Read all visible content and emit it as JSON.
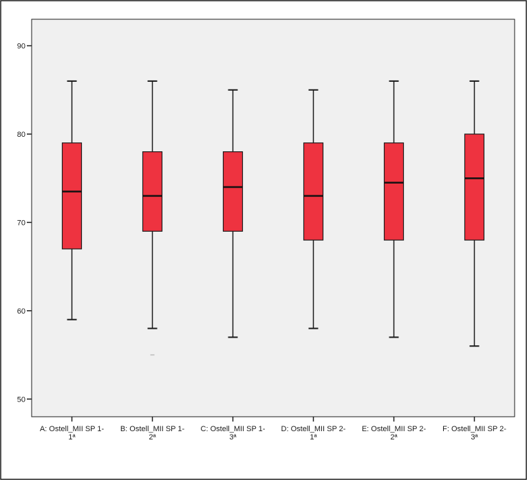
{
  "chart_data": {
    "type": "box",
    "title": "",
    "xlabel": "",
    "ylabel": "",
    "ylim": [
      48,
      93
    ],
    "yticks": [
      50,
      60,
      70,
      80,
      90
    ],
    "grid": false,
    "colors": {
      "box_fill": "#ee3340",
      "box_stroke": "#1a1a1a",
      "plot_background": "#f0f0f0",
      "outlier": "#c8c8c8"
    },
    "categories": [
      {
        "line1": "A: Ostell_MII SP 1-",
        "line2": "1ª"
      },
      {
        "line1": "B: Ostell_MII SP 1-",
        "line2": "2ª"
      },
      {
        "line1": "C: Ostell_MII SP 1-",
        "line2": "3ª"
      },
      {
        "line1": "D: Ostell_MII SP 2-",
        "line2": "1ª"
      },
      {
        "line1": "E: Ostell_MII SP 2-",
        "line2": "2ª"
      },
      {
        "line1": "F: Ostell_MII SP 2-",
        "line2": "3ª"
      }
    ],
    "boxes": [
      {
        "min": 59,
        "q1": 67,
        "median": 73.5,
        "q3": 79,
        "max": 86,
        "outliers": []
      },
      {
        "min": 58,
        "q1": 69,
        "median": 73,
        "q3": 78,
        "max": 86,
        "outliers": [
          55
        ]
      },
      {
        "min": 57,
        "q1": 69,
        "median": 74,
        "q3": 78,
        "max": 85,
        "outliers": []
      },
      {
        "min": 58,
        "q1": 68,
        "median": 73,
        "q3": 79,
        "max": 85,
        "outliers": []
      },
      {
        "min": 57,
        "q1": 68,
        "median": 74.5,
        "q3": 79,
        "max": 86,
        "outliers": []
      },
      {
        "min": 56,
        "q1": 68,
        "median": 75,
        "q3": 80,
        "max": 86,
        "outliers": []
      }
    ]
  }
}
